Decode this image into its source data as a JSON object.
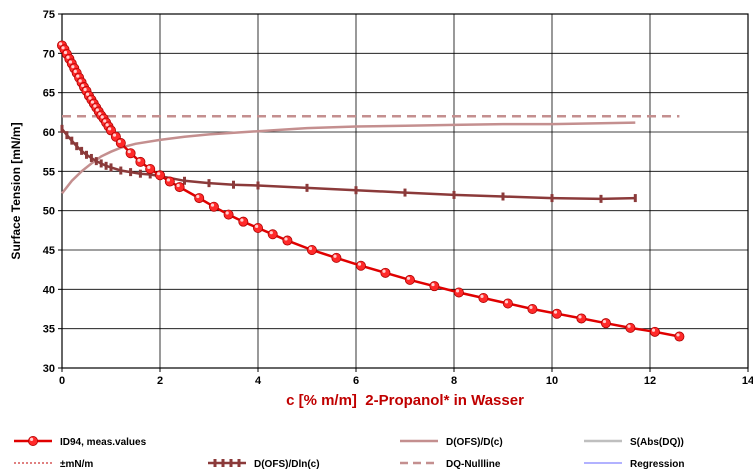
{
  "chart_data": {
    "type": "line",
    "xlabel": "c [% m/m]  2-Propanol* in Wasser",
    "ylabel": "Surface Tension [mN/m]",
    "xlim": [
      0,
      14
    ],
    "ylim": [
      30,
      75
    ],
    "xticks": [
      "0",
      "2",
      "4",
      "6",
      "8",
      "10",
      "12",
      "14"
    ],
    "yticks": [
      "30",
      "35",
      "40",
      "45",
      "50",
      "55",
      "60",
      "65",
      "70",
      "75"
    ],
    "grid": true,
    "legend_position": "bottom",
    "series": [
      {
        "name": "ID94, meas.values",
        "style": "line-markers",
        "color": "#e00000",
        "x": [
          0.0,
          0.05,
          0.1,
          0.15,
          0.2,
          0.25,
          0.3,
          0.35,
          0.4,
          0.45,
          0.5,
          0.55,
          0.6,
          0.65,
          0.7,
          0.75,
          0.8,
          0.85,
          0.9,
          0.95,
          1.0,
          1.1,
          1.2,
          1.4,
          1.6,
          1.8,
          2.0,
          2.2,
          2.4,
          2.8,
          3.1,
          3.4,
          3.7,
          4.0,
          4.3,
          4.6,
          5.1,
          5.6,
          6.1,
          6.6,
          7.1,
          7.6,
          8.1,
          8.6,
          9.1,
          9.6,
          10.1,
          10.6,
          11.1,
          11.6,
          12.1,
          12.6
        ],
        "y": [
          71.0,
          70.5,
          69.9,
          69.3,
          68.7,
          68.1,
          67.5,
          66.9,
          66.3,
          65.7,
          65.2,
          64.6,
          64.1,
          63.6,
          63.1,
          62.6,
          62.1,
          61.7,
          61.2,
          60.7,
          60.2,
          59.4,
          58.6,
          57.3,
          56.2,
          55.3,
          54.5,
          53.7,
          53.0,
          51.6,
          50.5,
          49.5,
          48.6,
          47.8,
          47.0,
          46.2,
          45.0,
          44.0,
          43.0,
          42.1,
          41.2,
          40.4,
          39.6,
          38.9,
          38.2,
          37.5,
          36.9,
          36.3,
          35.7,
          35.1,
          34.6,
          34.0
        ]
      },
      {
        "name": "D(OFS)/D(c)",
        "style": "line",
        "color": "#c48f8f",
        "x": [
          0.0,
          0.2,
          0.4,
          0.6,
          0.8,
          1.0,
          1.2,
          1.5,
          2.0,
          2.5,
          3.0,
          4.0,
          5.0,
          6.0,
          7.0,
          8.0,
          9.0,
          10.0,
          11.0,
          11.7
        ],
        "y": [
          52.2,
          53.8,
          55.0,
          56.0,
          56.9,
          57.5,
          58.0,
          58.5,
          59.0,
          59.4,
          59.7,
          60.1,
          60.5,
          60.7,
          60.8,
          60.9,
          61.0,
          61.0,
          61.1,
          61.2
        ]
      },
      {
        "name": "S(Abs(DQ))",
        "style": "line",
        "color": "#bfbfbf",
        "x": [],
        "y": []
      },
      {
        "name": "±mN/m",
        "style": "dotted",
        "color": "#c00000",
        "x": [],
        "y": []
      },
      {
        "name": "D(OFS)/Dln(c)",
        "style": "line-ticks",
        "color": "#8b3a3a",
        "x": [
          0.0,
          0.1,
          0.2,
          0.3,
          0.4,
          0.5,
          0.6,
          0.7,
          0.8,
          0.9,
          1.0,
          1.2,
          1.4,
          1.6,
          1.8,
          2.0,
          2.5,
          3.0,
          3.5,
          4.0,
          5.0,
          6.0,
          7.0,
          8.0,
          9.0,
          10.0,
          11.0,
          11.7
        ],
        "y": [
          60.4,
          59.6,
          58.9,
          58.2,
          57.6,
          57.1,
          56.7,
          56.3,
          56.0,
          55.7,
          55.5,
          55.1,
          54.9,
          54.7,
          54.6,
          54.4,
          53.8,
          53.5,
          53.3,
          53.2,
          52.9,
          52.6,
          52.3,
          52.0,
          51.8,
          51.6,
          51.5,
          51.6
        ]
      },
      {
        "name": "DQ-Nullline",
        "style": "dashed",
        "color": "#c48f8f",
        "x": [
          0.0,
          12.6
        ],
        "y": [
          62.0,
          62.0
        ]
      },
      {
        "name": "Regression",
        "style": "line",
        "color": "#9999ff",
        "x": [],
        "y": []
      }
    ]
  }
}
